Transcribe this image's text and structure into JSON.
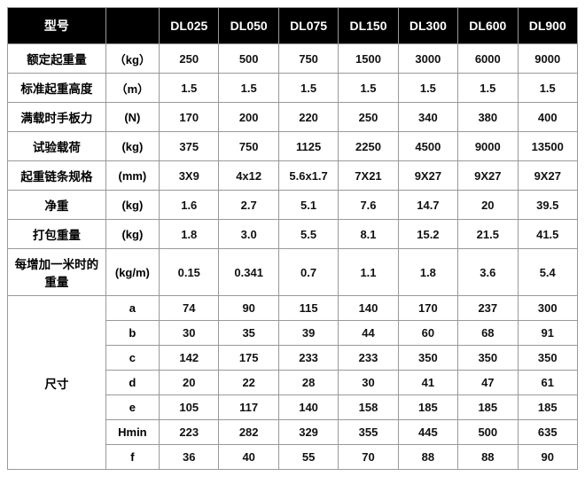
{
  "header": [
    "型号",
    "",
    "DL025",
    "DL050",
    "DL075",
    "DL150",
    "DL300",
    "DL600",
    "DL900"
  ],
  "rows": [
    {
      "label": "额定起重量",
      "unit": "（kg）",
      "vals": [
        "250",
        "500",
        "750",
        "1500",
        "3000",
        "6000",
        "9000"
      ]
    },
    {
      "label": "标准起重高度",
      "unit": "（m）",
      "vals": [
        "1.5",
        "1.5",
        "1.5",
        "1.5",
        "1.5",
        "1.5",
        "1.5"
      ]
    },
    {
      "label": "满载时手板力",
      "unit": "(N)",
      "vals": [
        "170",
        "200",
        "220",
        "250",
        "340",
        "380",
        "400"
      ]
    },
    {
      "label": "试验载荷",
      "unit": "(kg)",
      "vals": [
        "375",
        "750",
        "1125",
        "2250",
        "4500",
        "9000",
        "13500"
      ]
    },
    {
      "label": "起重链条规格",
      "unit": "(mm)",
      "vals": [
        "3X9",
        "4x12",
        "5.6x1.7",
        "7X21",
        "9X27",
        "9X27",
        "9X27"
      ]
    },
    {
      "label": "净重",
      "unit": "(kg)",
      "vals": [
        "1.6",
        "2.7",
        "5.1",
        "7.6",
        "14.7",
        "20",
        "39.5"
      ]
    },
    {
      "label": "打包重量",
      "unit": "(kg)",
      "vals": [
        "1.8",
        "3.0",
        "5.5",
        "8.1",
        "15.2",
        "21.5",
        "41.5"
      ]
    },
    {
      "label": "每增加一米时的重量",
      "unit": "(kg/m)",
      "vals": [
        "0.15",
        "0.341",
        "0.7",
        "1.1",
        "1.8",
        "3.6",
        "5.4"
      ]
    }
  ],
  "dimLabel": "尺寸",
  "dimRows": [
    {
      "sub": "a",
      "vals": [
        "74",
        "90",
        "115",
        "140",
        "170",
        "237",
        "300"
      ]
    },
    {
      "sub": "b",
      "vals": [
        "30",
        "35",
        "39",
        "44",
        "60",
        "68",
        "91"
      ]
    },
    {
      "sub": "c",
      "vals": [
        "142",
        "175",
        "233",
        "233",
        "350",
        "350",
        "350"
      ]
    },
    {
      "sub": "d",
      "vals": [
        "20",
        "22",
        "28",
        "30",
        "41",
        "47",
        "61"
      ]
    },
    {
      "sub": "e",
      "vals": [
        "105",
        "117",
        "140",
        "158",
        "185",
        "185",
        "185"
      ]
    },
    {
      "sub": "Hmin",
      "vals": [
        "223",
        "282",
        "329",
        "355",
        "445",
        "500",
        "635"
      ]
    },
    {
      "sub": "f",
      "vals": [
        "36",
        "40",
        "55",
        "70",
        "88",
        "88",
        "90"
      ]
    }
  ]
}
